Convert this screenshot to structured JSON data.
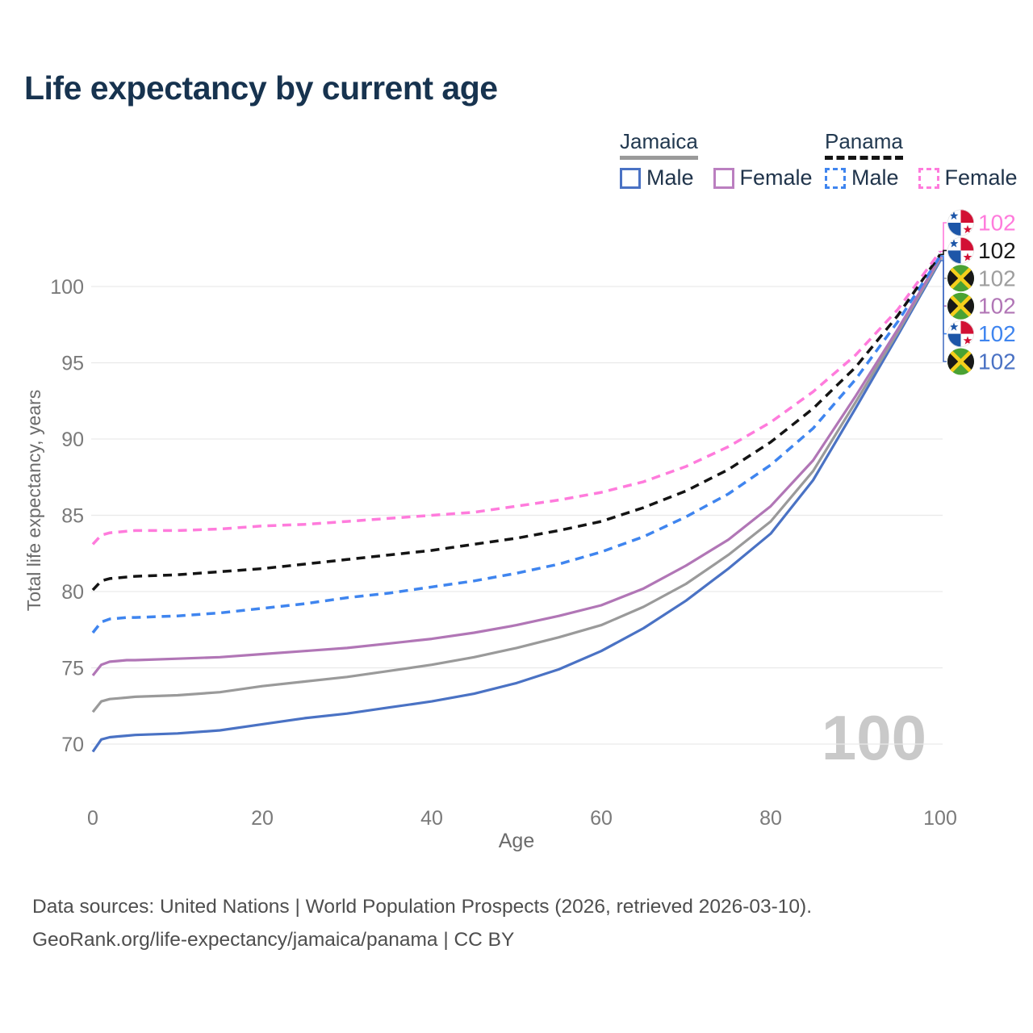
{
  "title": "Life expectancy by current age",
  "legend": {
    "groups": [
      {
        "country": "Jamaica",
        "line_style": "solid",
        "line_color": "#9a9a9a",
        "items": [
          {
            "label": "Male",
            "color": "#4a72c4",
            "dash": false
          },
          {
            "label": "Female",
            "color": "#bb7fc0",
            "dash": false
          }
        ]
      },
      {
        "country": "Panama",
        "line_style": "dashed",
        "line_color": "#141414",
        "items": [
          {
            "label": "Male",
            "color": "#3f85ef",
            "dash": true
          },
          {
            "label": "Female",
            "color": "#ff7bdc",
            "dash": true
          }
        ]
      }
    ]
  },
  "chart_data": {
    "type": "line",
    "title": "Life expectancy by current age",
    "xlabel": "Age",
    "ylabel": "Total life expectancy, years",
    "xlim": [
      0,
      100
    ],
    "ylim": [
      68.5,
      103.5
    ],
    "x_ticks": [
      0,
      20,
      40,
      60,
      80,
      100
    ],
    "y_ticks": [
      70,
      75,
      80,
      85,
      90,
      95,
      100
    ],
    "grid": "horizontal",
    "legend_position": "top-right",
    "watermark_age": "100",
    "x": [
      0,
      1,
      2,
      3,
      4,
      5,
      10,
      15,
      20,
      25,
      30,
      35,
      40,
      45,
      50,
      55,
      60,
      65,
      70,
      75,
      80,
      85,
      90,
      95,
      100
    ],
    "series": [
      {
        "name": "Jamaica Male",
        "country": "Jamaica",
        "sex": "male",
        "color": "#4a72c4",
        "dash": false,
        "end_label": "102",
        "values": [
          69.5,
          70.3,
          70.45,
          70.5,
          70.55,
          70.6,
          70.7,
          70.9,
          71.3,
          71.7,
          72.0,
          72.4,
          72.8,
          73.3,
          74.0,
          74.9,
          76.1,
          77.6,
          79.4,
          81.5,
          83.8,
          87.3,
          92.0,
          96.8,
          101.7
        ]
      },
      {
        "name": "Jamaica",
        "country": "Jamaica",
        "sex": "both",
        "color": "#9a9a9a",
        "dash": false,
        "end_label": "102",
        "values": [
          72.1,
          72.8,
          72.95,
          73.0,
          73.05,
          73.1,
          73.2,
          73.4,
          73.8,
          74.1,
          74.4,
          74.8,
          75.2,
          75.7,
          76.3,
          77.0,
          77.8,
          79.0,
          80.5,
          82.4,
          84.6,
          87.9,
          92.4,
          97.0,
          101.8
        ]
      },
      {
        "name": "Jamaica Female",
        "country": "Jamaica",
        "sex": "female",
        "color": "#b176b6",
        "dash": false,
        "end_label": "102",
        "values": [
          74.5,
          75.2,
          75.4,
          75.45,
          75.5,
          75.5,
          75.6,
          75.7,
          75.9,
          76.1,
          76.3,
          76.6,
          76.9,
          77.3,
          77.8,
          78.4,
          79.1,
          80.2,
          81.7,
          83.4,
          85.6,
          88.6,
          92.8,
          97.2,
          101.9
        ]
      },
      {
        "name": "Panama Male",
        "country": "Panama",
        "sex": "male",
        "color": "#3f85ef",
        "dash": true,
        "end_label": "102",
        "values": [
          77.3,
          78.0,
          78.2,
          78.25,
          78.3,
          78.3,
          78.4,
          78.6,
          78.9,
          79.2,
          79.6,
          79.9,
          80.3,
          80.7,
          81.2,
          81.8,
          82.6,
          83.6,
          84.9,
          86.4,
          88.3,
          90.7,
          93.9,
          97.7,
          102.0
        ]
      },
      {
        "name": "Panama",
        "country": "Panama",
        "sex": "both",
        "color": "#141414",
        "dash": true,
        "end_label": "102",
        "values": [
          80.1,
          80.7,
          80.85,
          80.9,
          80.95,
          81.0,
          81.1,
          81.3,
          81.5,
          81.8,
          82.1,
          82.4,
          82.7,
          83.1,
          83.5,
          84.0,
          84.6,
          85.5,
          86.6,
          88.0,
          89.8,
          92.0,
          94.7,
          98.1,
          102.1
        ]
      },
      {
        "name": "Panama Female",
        "country": "Panama",
        "sex": "female",
        "color": "#ff7bdc",
        "dash": true,
        "end_label": "102",
        "values": [
          83.1,
          83.7,
          83.85,
          83.9,
          83.95,
          84.0,
          84.0,
          84.1,
          84.3,
          84.4,
          84.6,
          84.8,
          85.0,
          85.2,
          85.6,
          86.0,
          86.5,
          87.2,
          88.2,
          89.5,
          91.1,
          93.1,
          95.5,
          98.5,
          102.3
        ]
      }
    ],
    "end_labels": [
      {
        "series": "Panama Female",
        "flag": "panama",
        "value": "102",
        "color": "#ff7bdc"
      },
      {
        "series": "Panama",
        "flag": "panama",
        "value": "102",
        "color": "#1a1a1a"
      },
      {
        "series": "Jamaica",
        "flag": "jamaica",
        "value": "102",
        "color": "#9e9e9e"
      },
      {
        "series": "Jamaica Female",
        "flag": "jamaica",
        "value": "102",
        "color": "#b176b6"
      },
      {
        "series": "Panama Male",
        "flag": "panama",
        "value": "102",
        "color": "#3f85ef"
      },
      {
        "series": "Jamaica Male",
        "flag": "jamaica",
        "value": "102",
        "color": "#4a72c4"
      }
    ]
  },
  "flag_colors": {
    "jamaica": {
      "green": "#4aa233",
      "gold": "#f5cf1b",
      "black": "#181818"
    },
    "panama": {
      "red": "#d21034",
      "blue": "#1d56a8",
      "white": "#ffffff"
    }
  },
  "footer": {
    "line1": "Data sources: United Nations | World Population Prospects (2026, retrieved 2026-03-10).",
    "line2": "GeoRank.org/life-expectancy/jamaica/panama | CC BY"
  }
}
